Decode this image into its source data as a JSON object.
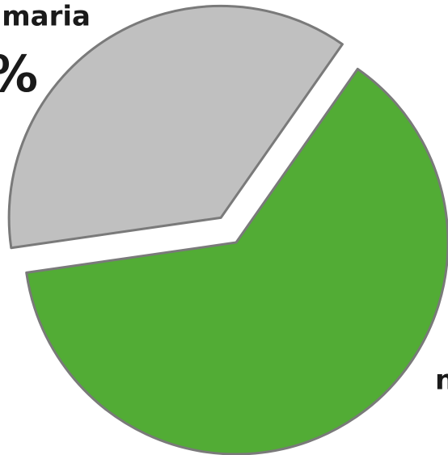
{
  "chart_data": {
    "type": "pie",
    "categories": [
      "maria",
      "n"
    ],
    "values": [
      37,
      63
    ],
    "value_labels": [
      "%",
      null
    ],
    "colors": [
      "#c0c0c0",
      "#52ac35"
    ],
    "exploded": [
      true,
      false
    ]
  }
}
